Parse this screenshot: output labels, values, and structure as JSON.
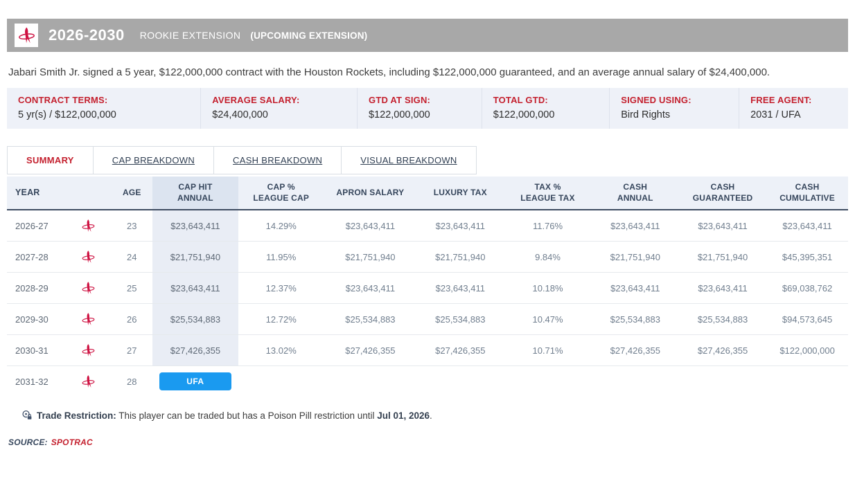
{
  "colors": {
    "accent_red": "#c4202e",
    "ufa_blue": "#1a9af0",
    "rockets_red": "#ce1141",
    "bar_gray": "#a8a8a8"
  },
  "contract_header": {
    "years": "2026-2030",
    "type": "ROOKIE EXTENSION",
    "status": "(UPCOMING EXTENSION)",
    "logo": "houston-rockets-logo"
  },
  "description": "Jabari Smith Jr. signed a 5 year, $122,000,000 contract with the Houston Rockets, including $122,000,000 guaranteed, and an average annual salary of $24,400,000.",
  "terms": [
    {
      "label": "CONTRACT TERMS:",
      "value": "5 yr(s) / $122,000,000"
    },
    {
      "label": "AVERAGE SALARY:",
      "value": "$24,400,000"
    },
    {
      "label": "GTD AT SIGN:",
      "value": "$122,000,000"
    },
    {
      "label": "TOTAL GTD:",
      "value": "$122,000,000"
    },
    {
      "label": "SIGNED USING:",
      "value": "Bird Rights"
    },
    {
      "label": "FREE AGENT:",
      "value": "2031 / UFA"
    }
  ],
  "tabs": [
    {
      "label": "SUMMARY",
      "active": true
    },
    {
      "label": "CAP BREAKDOWN",
      "active": false
    },
    {
      "label": "CASH BREAKDOWN",
      "active": false
    },
    {
      "label": "VISUAL BREAKDOWN",
      "active": false
    }
  ],
  "table": {
    "columns": [
      {
        "id": "year",
        "label": "YEAR"
      },
      {
        "id": "team",
        "label": ""
      },
      {
        "id": "age",
        "label": "AGE"
      },
      {
        "id": "cap_hit",
        "label": "CAP HIT\nANNUAL",
        "highlight": true
      },
      {
        "id": "cap_pct",
        "label": "CAP %\nLEAGUE CAP"
      },
      {
        "id": "apron",
        "label": "APRON SALARY"
      },
      {
        "id": "luxury",
        "label": "LUXURY TAX"
      },
      {
        "id": "tax_pct",
        "label": "TAX %\nLEAGUE TAX"
      },
      {
        "id": "cash_annual",
        "label": "CASH\nANNUAL"
      },
      {
        "id": "cash_gtd",
        "label": "CASH\nGUARANTEED"
      },
      {
        "id": "cash_cum",
        "label": "CASH\nCUMULATIVE"
      }
    ],
    "rows": [
      {
        "year": "2026-27",
        "team": "rockets-logo",
        "age": "23",
        "cap_hit": "$23,643,411",
        "cap_pct": "14.29%",
        "apron": "$23,643,411",
        "luxury": "$23,643,411",
        "tax_pct": "11.76%",
        "cash_annual": "$23,643,411",
        "cash_gtd": "$23,643,411",
        "cash_cum": "$23,643,411"
      },
      {
        "year": "2027-28",
        "team": "rockets-logo",
        "age": "24",
        "cap_hit": "$21,751,940",
        "cap_pct": "11.95%",
        "apron": "$21,751,940",
        "luxury": "$21,751,940",
        "tax_pct": "9.84%",
        "cash_annual": "$21,751,940",
        "cash_gtd": "$21,751,940",
        "cash_cum": "$45,395,351"
      },
      {
        "year": "2028-29",
        "team": "rockets-logo",
        "age": "25",
        "cap_hit": "$23,643,411",
        "cap_pct": "12.37%",
        "apron": "$23,643,411",
        "luxury": "$23,643,411",
        "tax_pct": "10.18%",
        "cash_annual": "$23,643,411",
        "cash_gtd": "$23,643,411",
        "cash_cum": "$69,038,762"
      },
      {
        "year": "2029-30",
        "team": "rockets-logo",
        "age": "26",
        "cap_hit": "$25,534,883",
        "cap_pct": "12.72%",
        "apron": "$25,534,883",
        "luxury": "$25,534,883",
        "tax_pct": "10.47%",
        "cash_annual": "$25,534,883",
        "cash_gtd": "$25,534,883",
        "cash_cum": "$94,573,645"
      },
      {
        "year": "2030-31",
        "team": "rockets-logo",
        "age": "27",
        "cap_hit": "$27,426,355",
        "cap_pct": "13.02%",
        "apron": "$27,426,355",
        "luxury": "$27,426,355",
        "tax_pct": "10.71%",
        "cash_annual": "$27,426,355",
        "cash_gtd": "$27,426,355",
        "cash_cum": "$122,000,000"
      },
      {
        "year": "2031-32",
        "team": "rockets-logo",
        "age": "28",
        "ufa_badge": "UFA"
      }
    ]
  },
  "trade_restriction": {
    "label": "Trade Restriction:",
    "text": " This player can be traded but has a Poison Pill restriction until ",
    "date": "Jul 01, 2026",
    "period": "."
  },
  "source": {
    "label": "SOURCE:",
    "link": "SPOTRAC"
  }
}
